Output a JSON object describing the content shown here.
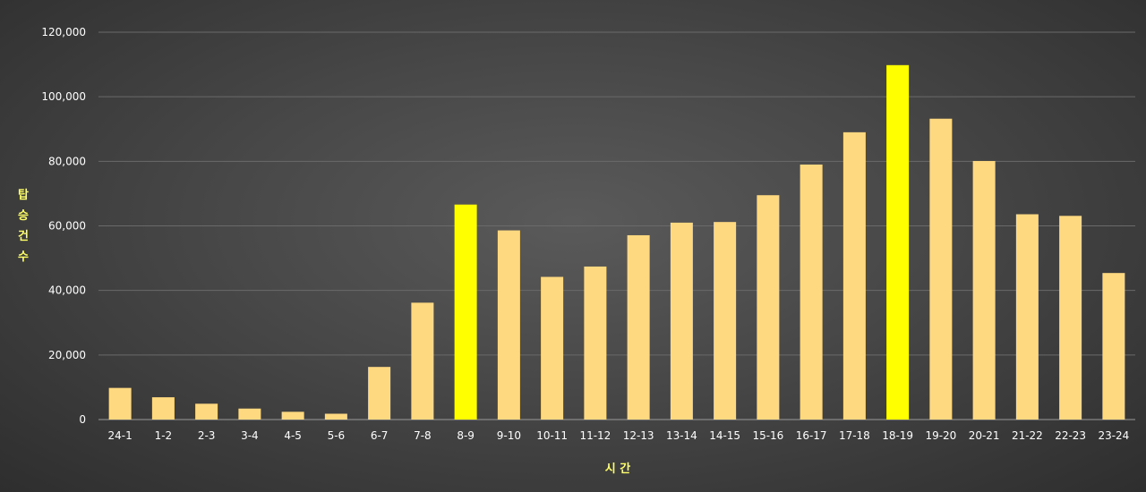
{
  "chart_data": {
    "type": "bar",
    "title": "",
    "xlabel": "시 간",
    "ylabel_chars": [
      "탑",
      "승",
      "건",
      "수"
    ],
    "ylim": [
      0,
      120000
    ],
    "yticks": [
      0,
      20000,
      40000,
      60000,
      80000,
      100000,
      120000
    ],
    "ytick_labels": [
      "0",
      "20,000",
      "40,000",
      "60,000",
      "80,000",
      "100,000",
      "120,000"
    ],
    "grid": true,
    "categories": [
      "24-1",
      "1-2",
      "2-3",
      "3-4",
      "4-5",
      "5-6",
      "6-7",
      "7-8",
      "8-9",
      "9-10",
      "10-11",
      "11-12",
      "12-13",
      "13-14",
      "14-15",
      "15-16",
      "16-17",
      "17-18",
      "18-19",
      "19-20",
      "20-21",
      "21-22",
      "22-23",
      "23-24"
    ],
    "values": [
      9800,
      6900,
      4900,
      3400,
      2400,
      1800,
      16300,
      36200,
      66600,
      58600,
      44200,
      47400,
      57100,
      61000,
      61200,
      69500,
      79000,
      89000,
      109800,
      93200,
      80100,
      63600,
      63100,
      45400
    ],
    "highlight_categories": [
      "8-9",
      "18-19"
    ]
  },
  "colors": {
    "bar": "#ffd980",
    "bar_highlight": "#ffff00",
    "label_yellow": "#ffff66",
    "tick_text": "#ffffff",
    "grid": "#6a6a6a",
    "axis": "#9a9a9a"
  }
}
